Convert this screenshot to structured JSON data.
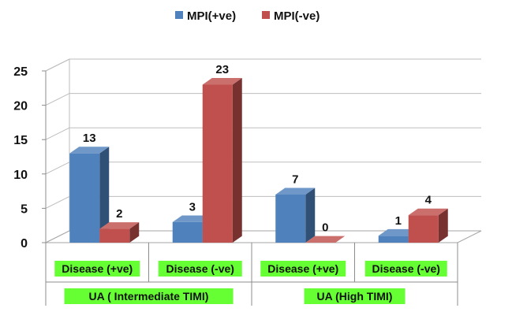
{
  "chart_data": {
    "type": "bar",
    "categories": [
      "Disease (+ve)",
      "Disease (-ve)",
      "Disease (+ve)",
      "Disease (-ve)"
    ],
    "groups": [
      {
        "label": "UA  ( Intermediate TIMI)",
        "span": [
          0,
          1
        ]
      },
      {
        "label": "UA (High TIMI)",
        "span": [
          2,
          3
        ]
      }
    ],
    "series": [
      {
        "name": "MPI(+ve)",
        "values": [
          13,
          3,
          7,
          1
        ],
        "color": "#4F81BD"
      },
      {
        "name": "MPI(-ve)",
        "values": [
          2,
          23,
          0,
          4
        ],
        "color": "#C0504D"
      }
    ],
    "yticks": [
      "0",
      "5",
      "10",
      "15",
      "20",
      "25"
    ],
    "ylim": [
      0,
      25
    ],
    "grid": true,
    "legend": "top-center",
    "data_labels": true,
    "category_label_background": "#66FF33"
  }
}
